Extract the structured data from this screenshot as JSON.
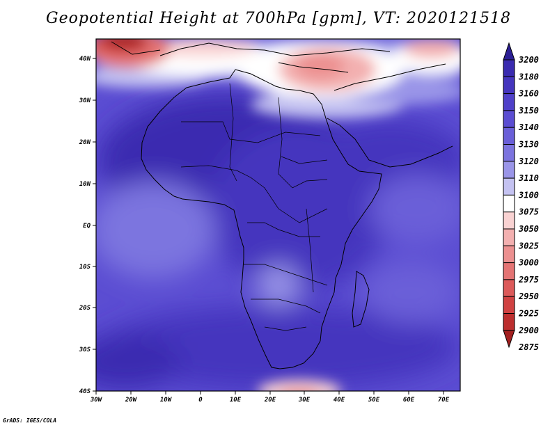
{
  "title": "Geopotential Height at 700hPa [gpm], VT: 2020121518",
  "footer": "GrADS: IGES/COLA",
  "map": {
    "lon_ticks": [
      "30W",
      "20W",
      "10W",
      "0",
      "10E",
      "20E",
      "30E",
      "40E",
      "50E",
      "60E",
      "70E"
    ],
    "lat_ticks": [
      "40N",
      "30N",
      "20N",
      "10N",
      "EQ",
      "10S",
      "20S",
      "30S",
      "40S"
    ]
  },
  "colorbar": {
    "levels": [
      "3200",
      "3180",
      "3160",
      "3150",
      "3140",
      "3130",
      "3120",
      "3110",
      "3100",
      "3075",
      "3050",
      "3025",
      "3000",
      "2975",
      "2950",
      "2925",
      "2900",
      "2875"
    ],
    "colors": [
      "#2c1f95",
      "#3a2bb0",
      "#4535be",
      "#4f40c9",
      "#5b4dd2",
      "#6a5fd8",
      "#7c74df",
      "#9a95e8",
      "#c4c2f1",
      "#ffffff",
      "#f9d2d2",
      "#f3b0b0",
      "#ec9090",
      "#e47474",
      "#dc5a5a",
      "#d04242",
      "#bc2e2e",
      "#a31f1f"
    ]
  }
}
